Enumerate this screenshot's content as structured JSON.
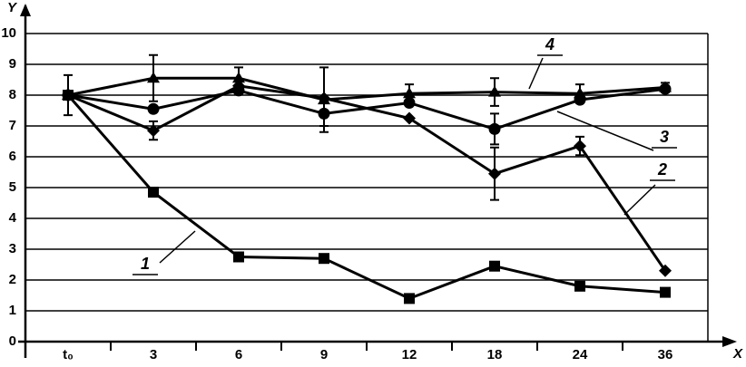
{
  "chart_data": {
    "type": "line",
    "x_label": "X",
    "y_label": "Y",
    "categories": [
      "t₀",
      "3",
      "6",
      "9",
      "12",
      "18",
      "24",
      "36"
    ],
    "ylim": [
      0,
      10
    ],
    "yticks": [
      0,
      1,
      2,
      3,
      4,
      5,
      6,
      7,
      8,
      9,
      10
    ],
    "grid": true,
    "series": [
      {
        "name": "1",
        "color": "#000000",
        "marker": "square",
        "values": [
          8,
          4.85,
          2.75,
          2.7,
          1.4,
          2.45,
          1.8,
          1.6
        ],
        "errors": [
          0.65,
          null,
          null,
          null,
          null,
          null,
          null,
          null
        ]
      },
      {
        "name": "2",
        "color": "#000000",
        "marker": "diamond",
        "values": [
          8,
          6.85,
          8.3,
          7.9,
          7.25,
          5.45,
          6.35,
          2.3
        ],
        "errors": [
          null,
          0.3,
          null,
          null,
          null,
          0.85,
          0.3,
          null
        ]
      },
      {
        "name": "3",
        "color": "#000000",
        "marker": "circle",
        "values": [
          8,
          7.55,
          8.15,
          7.4,
          7.75,
          6.9,
          7.85,
          8.2
        ],
        "errors": [
          null,
          null,
          null,
          0.4,
          null,
          0.5,
          null,
          null
        ]
      },
      {
        "name": "4",
        "color": "#000000",
        "marker": "triangle",
        "values": [
          8,
          8.55,
          8.55,
          7.85,
          8.05,
          8.1,
          8.05,
          8.25
        ],
        "errors": [
          null,
          0.75,
          0.35,
          1.05,
          0.3,
          0.45,
          0.3,
          0.15
        ]
      }
    ]
  }
}
